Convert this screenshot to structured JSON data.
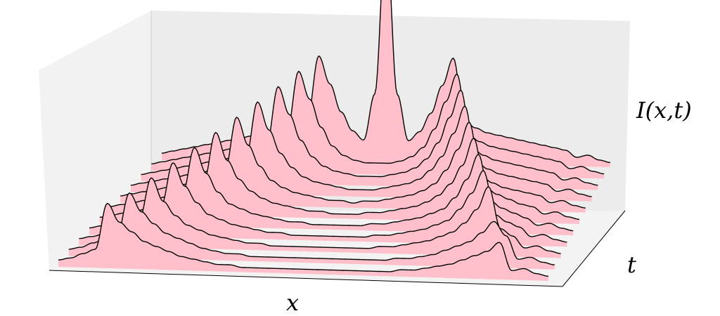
{
  "chart_data": {
    "type": "area",
    "title": "",
    "xlabel": "x",
    "ylabel": "t",
    "zlabel": "I(x,t)",
    "grid": false,
    "colors": {
      "fill": "#ffc0cb",
      "stroke": "#000000",
      "pane_back": "#ececec",
      "pane_side": "#e2e2e2",
      "pane_floor": "#f0f0f0"
    },
    "xlim": [
      -1,
      1
    ],
    "ylim": [
      0,
      1
    ],
    "zlim": [
      0,
      1
    ],
    "x": [
      -1.0,
      -0.95,
      -0.9,
      -0.85,
      -0.8,
      -0.75,
      -0.7,
      -0.65,
      -0.6,
      -0.55,
      -0.5,
      -0.45,
      -0.4,
      -0.35,
      -0.3,
      -0.25,
      -0.2,
      -0.15,
      -0.1,
      -0.05,
      0.0,
      0.05,
      0.1,
      0.15,
      0.2,
      0.25,
      0.3,
      0.35,
      0.4,
      0.45,
      0.5,
      0.55,
      0.6,
      0.65,
      0.7,
      0.75,
      0.8,
      0.85,
      0.9,
      0.95,
      1.0
    ],
    "series": [
      {
        "t": 0.0,
        "values": [
          0.03,
          0.04,
          0.06,
          0.08,
          0.28,
          0.2,
          0.16,
          0.12,
          0.1,
          0.08,
          0.06,
          0.05,
          0.04,
          0.03,
          0.03,
          0.02,
          0.02,
          0.02,
          0.02,
          0.02,
          0.02,
          0.02,
          0.02,
          0.02,
          0.02,
          0.02,
          0.02,
          0.02,
          0.03,
          0.03,
          0.04,
          0.05,
          0.06,
          0.08,
          0.1,
          0.12,
          0.16,
          0.04,
          0.05,
          0.03,
          0.02
        ]
      },
      {
        "t": 0.1,
        "values": [
          0.03,
          0.04,
          0.06,
          0.08,
          0.1,
          0.28,
          0.2,
          0.15,
          0.11,
          0.09,
          0.07,
          0.05,
          0.04,
          0.03,
          0.03,
          0.02,
          0.02,
          0.02,
          0.02,
          0.02,
          0.02,
          0.02,
          0.02,
          0.02,
          0.02,
          0.02,
          0.02,
          0.03,
          0.03,
          0.04,
          0.05,
          0.07,
          0.09,
          0.11,
          0.15,
          0.2,
          0.14,
          0.04,
          0.05,
          0.03,
          0.02
        ]
      },
      {
        "t": 0.2,
        "values": [
          0.03,
          0.04,
          0.05,
          0.07,
          0.09,
          0.12,
          0.3,
          0.2,
          0.14,
          0.1,
          0.08,
          0.06,
          0.05,
          0.04,
          0.03,
          0.03,
          0.02,
          0.02,
          0.02,
          0.02,
          0.02,
          0.02,
          0.02,
          0.02,
          0.02,
          0.03,
          0.03,
          0.04,
          0.05,
          0.06,
          0.08,
          0.1,
          0.14,
          0.2,
          0.3,
          0.12,
          0.09,
          0.04,
          0.05,
          0.03,
          0.02
        ]
      },
      {
        "t": 0.3,
        "values": [
          0.03,
          0.04,
          0.05,
          0.06,
          0.08,
          0.1,
          0.13,
          0.32,
          0.22,
          0.15,
          0.1,
          0.08,
          0.06,
          0.05,
          0.04,
          0.03,
          0.03,
          0.02,
          0.02,
          0.02,
          0.02,
          0.02,
          0.02,
          0.02,
          0.03,
          0.03,
          0.04,
          0.05,
          0.06,
          0.08,
          0.1,
          0.15,
          0.22,
          0.32,
          0.13,
          0.1,
          0.08,
          0.04,
          0.05,
          0.03,
          0.02
        ]
      },
      {
        "t": 0.4,
        "values": [
          0.03,
          0.04,
          0.05,
          0.06,
          0.07,
          0.09,
          0.11,
          0.14,
          0.34,
          0.23,
          0.15,
          0.1,
          0.08,
          0.06,
          0.05,
          0.04,
          0.03,
          0.03,
          0.02,
          0.02,
          0.02,
          0.02,
          0.02,
          0.03,
          0.03,
          0.04,
          0.05,
          0.06,
          0.08,
          0.1,
          0.15,
          0.23,
          0.34,
          0.14,
          0.11,
          0.09,
          0.07,
          0.04,
          0.05,
          0.03,
          0.02
        ]
      },
      {
        "t": 0.5,
        "values": [
          0.03,
          0.04,
          0.05,
          0.06,
          0.07,
          0.08,
          0.1,
          0.12,
          0.15,
          0.36,
          0.24,
          0.16,
          0.11,
          0.08,
          0.06,
          0.05,
          0.04,
          0.03,
          0.03,
          0.02,
          0.02,
          0.02,
          0.03,
          0.03,
          0.04,
          0.05,
          0.06,
          0.08,
          0.11,
          0.16,
          0.24,
          0.36,
          0.15,
          0.12,
          0.1,
          0.08,
          0.07,
          0.04,
          0.05,
          0.03,
          0.02
        ]
      },
      {
        "t": 0.6,
        "values": [
          0.03,
          0.04,
          0.05,
          0.06,
          0.07,
          0.08,
          0.09,
          0.1,
          0.12,
          0.15,
          0.38,
          0.26,
          0.17,
          0.11,
          0.08,
          0.06,
          0.05,
          0.04,
          0.03,
          0.03,
          0.02,
          0.03,
          0.03,
          0.04,
          0.05,
          0.06,
          0.08,
          0.11,
          0.17,
          0.26,
          0.38,
          0.15,
          0.12,
          0.1,
          0.09,
          0.08,
          0.07,
          0.04,
          0.05,
          0.03,
          0.02
        ]
      },
      {
        "t": 0.7,
        "values": [
          0.03,
          0.04,
          0.05,
          0.06,
          0.07,
          0.08,
          0.09,
          0.1,
          0.11,
          0.13,
          0.16,
          0.4,
          0.28,
          0.18,
          0.12,
          0.08,
          0.06,
          0.05,
          0.04,
          0.03,
          0.03,
          0.03,
          0.04,
          0.05,
          0.06,
          0.08,
          0.12,
          0.18,
          0.28,
          0.4,
          0.16,
          0.13,
          0.11,
          0.1,
          0.09,
          0.08,
          0.07,
          0.04,
          0.05,
          0.03,
          0.02
        ]
      },
      {
        "t": 0.8,
        "values": [
          0.03,
          0.04,
          0.05,
          0.06,
          0.07,
          0.08,
          0.09,
          0.1,
          0.11,
          0.12,
          0.14,
          0.17,
          0.42,
          0.3,
          0.19,
          0.12,
          0.08,
          0.06,
          0.05,
          0.04,
          0.04,
          0.04,
          0.05,
          0.06,
          0.08,
          0.12,
          0.19,
          0.3,
          0.42,
          0.17,
          0.14,
          0.12,
          0.11,
          0.1,
          0.09,
          0.08,
          0.07,
          0.04,
          0.05,
          0.03,
          0.02
        ]
      },
      {
        "t": 0.9,
        "values": [
          0.03,
          0.04,
          0.05,
          0.06,
          0.07,
          0.08,
          0.09,
          0.1,
          0.11,
          0.12,
          0.13,
          0.15,
          0.18,
          0.44,
          0.32,
          0.2,
          0.12,
          0.08,
          0.06,
          0.05,
          0.05,
          0.05,
          0.06,
          0.08,
          0.12,
          0.2,
          0.32,
          0.44,
          0.18,
          0.15,
          0.13,
          0.12,
          0.11,
          0.1,
          0.09,
          0.08,
          0.07,
          0.04,
          0.05,
          0.03,
          0.02
        ]
      },
      {
        "t": 1.0,
        "values": [
          0.03,
          0.04,
          0.05,
          0.06,
          0.07,
          0.08,
          0.09,
          0.1,
          0.11,
          0.12,
          0.13,
          0.14,
          0.16,
          0.19,
          0.46,
          0.34,
          0.22,
          0.14,
          0.1,
          0.3,
          1.0,
          0.3,
          0.1,
          0.14,
          0.22,
          0.34,
          0.46,
          0.19,
          0.16,
          0.14,
          0.13,
          0.12,
          0.11,
          0.1,
          0.09,
          0.08,
          0.07,
          0.04,
          0.05,
          0.03,
          0.02
        ]
      }
    ]
  }
}
